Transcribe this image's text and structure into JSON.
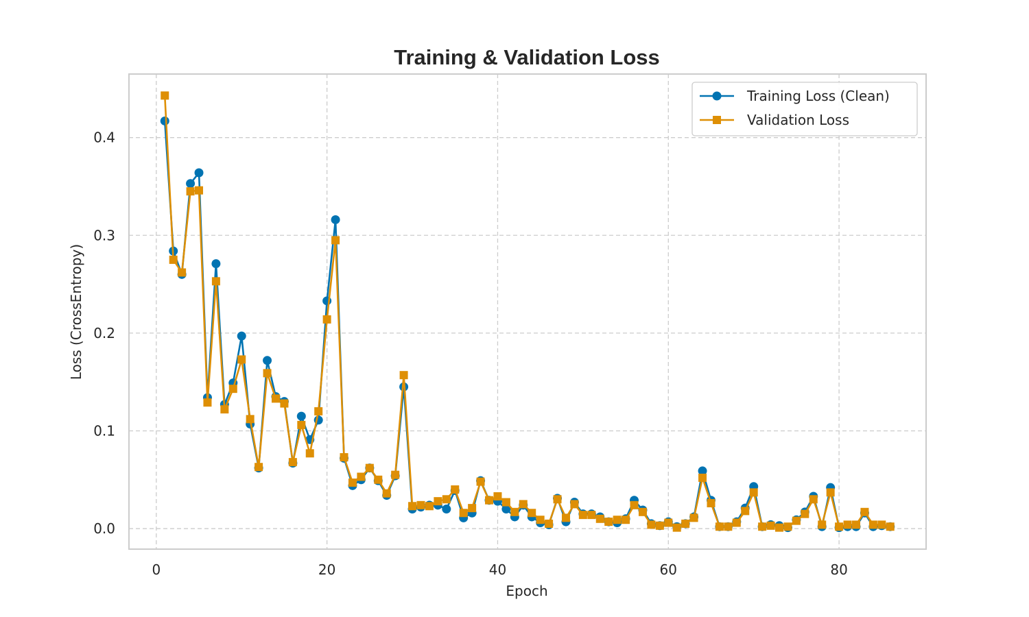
{
  "chart_data": {
    "type": "line",
    "title": "Training & Validation Loss",
    "xlabel": "Epoch",
    "ylabel": "Loss (CrossEntropy)",
    "xlim": [
      -3.2,
      90.2
    ],
    "ylim": [
      -0.021,
      0.465
    ],
    "xticks": [
      0,
      20,
      40,
      60,
      80
    ],
    "yticks": [
      0.0,
      0.1,
      0.2,
      0.3,
      0.4
    ],
    "xtick_labels": [
      "0",
      "20",
      "40",
      "60",
      "80"
    ],
    "ytick_labels": [
      "0.0",
      "0.1",
      "0.2",
      "0.3",
      "0.4"
    ],
    "grid": true,
    "legend_position": "top-right",
    "x": [
      1,
      2,
      3,
      4,
      5,
      6,
      7,
      8,
      9,
      10,
      11,
      12,
      13,
      14,
      15,
      16,
      17,
      18,
      19,
      20,
      21,
      22,
      23,
      24,
      25,
      26,
      27,
      28,
      29,
      30,
      31,
      32,
      33,
      34,
      35,
      36,
      37,
      38,
      39,
      40,
      41,
      42,
      43,
      44,
      45,
      46,
      47,
      48,
      49,
      50,
      51,
      52,
      53,
      54,
      55,
      56,
      57,
      58,
      59,
      60,
      61,
      62,
      63,
      64,
      65,
      66,
      67,
      68,
      69,
      70,
      71,
      72,
      73,
      74,
      75,
      76,
      77,
      78,
      79,
      80,
      81,
      82,
      83,
      84,
      85,
      86
    ],
    "series": [
      {
        "name": "Training Loss (Clean)",
        "color": "#0173b2",
        "marker": "circle",
        "values": [
          0.417,
          0.284,
          0.26,
          0.353,
          0.364,
          0.134,
          0.271,
          0.127,
          0.149,
          0.197,
          0.107,
          0.062,
          0.172,
          0.135,
          0.13,
          0.067,
          0.115,
          0.091,
          0.111,
          0.233,
          0.316,
          0.072,
          0.044,
          0.05,
          0.062,
          0.049,
          0.034,
          0.054,
          0.145,
          0.02,
          0.022,
          0.024,
          0.024,
          0.02,
          0.039,
          0.011,
          0.016,
          0.049,
          0.029,
          0.028,
          0.02,
          0.012,
          0.024,
          0.012,
          0.006,
          0.004,
          0.031,
          0.007,
          0.027,
          0.015,
          0.015,
          0.012,
          0.007,
          0.006,
          0.01,
          0.029,
          0.019,
          0.005,
          0.003,
          0.007,
          0.002,
          0.005,
          0.012,
          0.059,
          0.029,
          0.002,
          0.002,
          0.007,
          0.021,
          0.043,
          0.002,
          0.004,
          0.003,
          0.001,
          0.009,
          0.017,
          0.033,
          0.002,
          0.042,
          0.001,
          0.002,
          0.002,
          0.016,
          0.002,
          0.003,
          0.002
        ]
      },
      {
        "name": "Validation Loss",
        "color": "#de8f05",
        "marker": "square",
        "values": [
          0.443,
          0.275,
          0.262,
          0.345,
          0.346,
          0.129,
          0.253,
          0.122,
          0.143,
          0.173,
          0.112,
          0.063,
          0.159,
          0.133,
          0.128,
          0.068,
          0.106,
          0.077,
          0.12,
          0.214,
          0.295,
          0.073,
          0.047,
          0.053,
          0.062,
          0.05,
          0.036,
          0.055,
          0.157,
          0.023,
          0.024,
          0.023,
          0.028,
          0.03,
          0.04,
          0.016,
          0.021,
          0.048,
          0.029,
          0.033,
          0.027,
          0.017,
          0.025,
          0.016,
          0.009,
          0.005,
          0.03,
          0.011,
          0.025,
          0.014,
          0.014,
          0.01,
          0.007,
          0.009,
          0.009,
          0.024,
          0.017,
          0.004,
          0.003,
          0.006,
          0.001,
          0.005,
          0.011,
          0.052,
          0.026,
          0.002,
          0.002,
          0.006,
          0.018,
          0.037,
          0.002,
          0.003,
          0.001,
          0.002,
          0.008,
          0.015,
          0.03,
          0.004,
          0.037,
          0.002,
          0.004,
          0.004,
          0.017,
          0.004,
          0.004,
          0.002
        ]
      }
    ]
  }
}
